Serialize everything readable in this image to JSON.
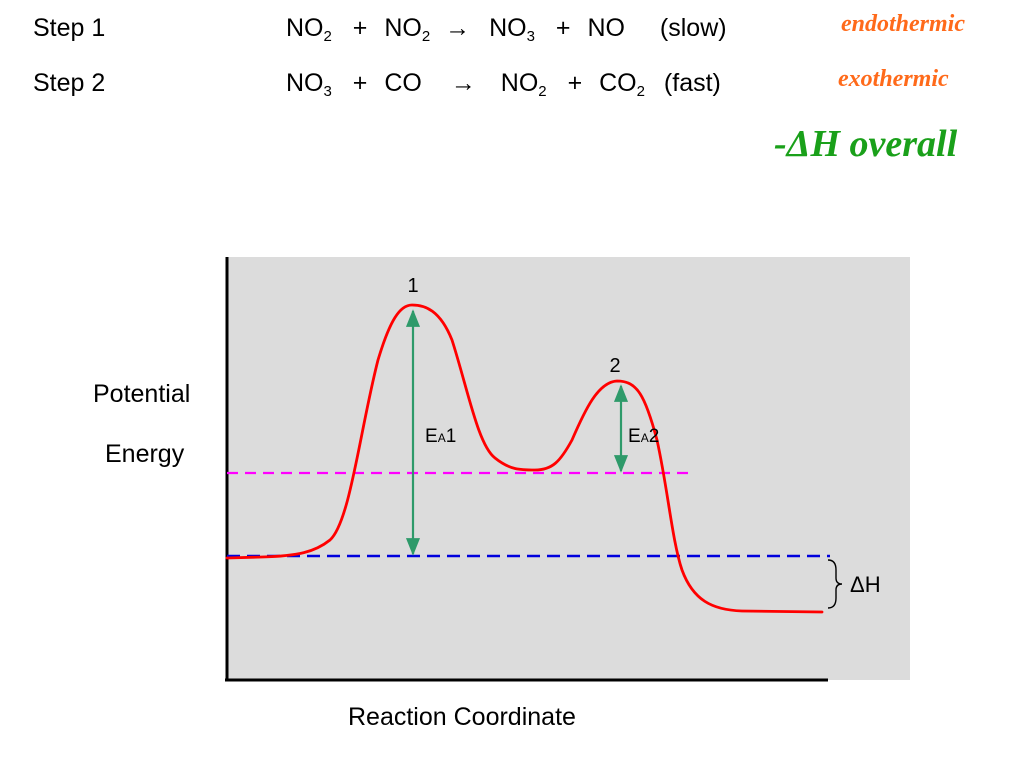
{
  "steps": [
    {
      "label": "Step 1",
      "r1": "NO",
      "r1_sub": "2",
      "plus1": "+",
      "r2": "NO",
      "r2_sub": "2",
      "arrow": "→",
      "p1": "NO",
      "p1_sub": "3",
      "plus2": "+",
      "p2": "NO",
      "p2_sub": "",
      "rate": "(slow)",
      "note": "endothermic"
    },
    {
      "label": "Step 2",
      "r1": "NO",
      "r1_sub": "3",
      "plus1": "+",
      "r2": "CO",
      "r2_sub": "",
      "arrow": "→",
      "p1": "NO",
      "p1_sub": "2",
      "plus2": "+",
      "p2": "CO",
      "p2_sub": "2",
      "rate": "(fast)",
      "note": "exothermic"
    }
  ],
  "overall_note": "-ΔH overall",
  "diagram": {
    "ylabel_line1": "Potential",
    "ylabel_line2": "Energy",
    "xlabel": "Reaction Coordinate",
    "peak1_label": "1",
    "peak2_label": "2",
    "ea1_main": "E",
    "ea1_sub": "A",
    "ea1_num": "1",
    "ea2_main": "E",
    "ea2_sub": "A",
    "ea2_num": "2",
    "dh_label": "ΔH"
  },
  "colors": {
    "note_orange": "#ff6a1a",
    "overall_green": "#1aa01a",
    "plot_bg": "#dcdcdc",
    "curve": "#ff0000",
    "ea_arrow": "#2e9a6a",
    "reactant_line": "#0000dd",
    "intermediate_line": "#ff00ff"
  }
}
